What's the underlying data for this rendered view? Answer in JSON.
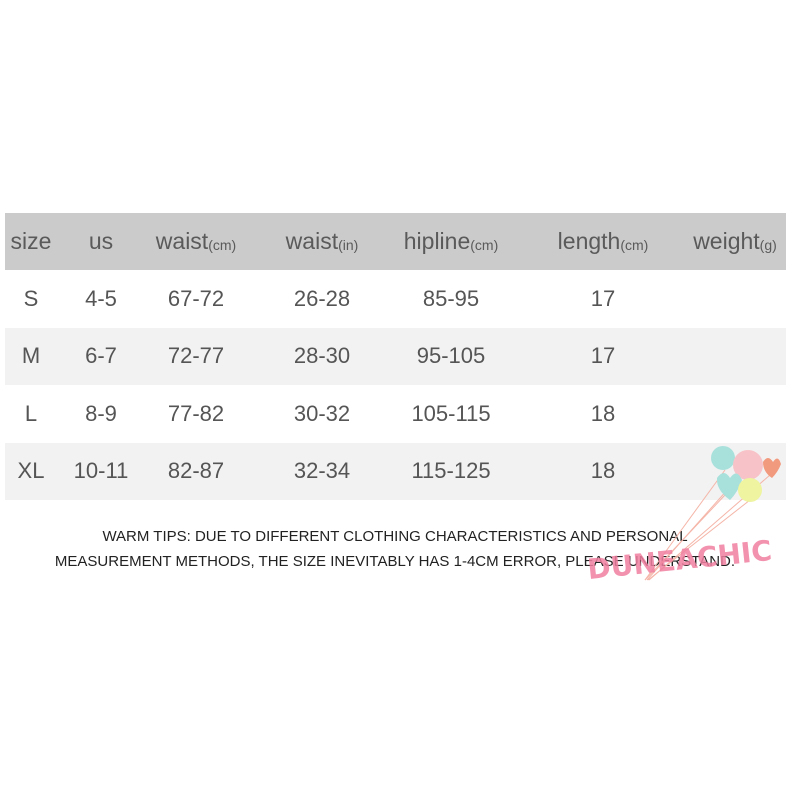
{
  "headers": [
    {
      "label": "size",
      "unit": ""
    },
    {
      "label": "us",
      "unit": ""
    },
    {
      "label": "waist",
      "unit": "(cm)"
    },
    {
      "label": "waist",
      "unit": "(in)"
    },
    {
      "label": "hipline",
      "unit": "(cm)"
    },
    {
      "label": "length",
      "unit": "(cm)"
    },
    {
      "label": "weight",
      "unit": "(g)"
    }
  ],
  "rows": [
    [
      "S",
      "4-5",
      "67-72",
      "26-28",
      "85-95",
      "17",
      ""
    ],
    [
      "M",
      "6-7",
      "72-77",
      "28-30",
      "95-105",
      "17",
      ""
    ],
    [
      "L",
      "8-9",
      "77-82",
      "30-32",
      "105-115",
      "18",
      ""
    ],
    [
      "XL",
      "10-11",
      "82-87",
      "32-34",
      "115-125",
      "18",
      ""
    ]
  ],
  "tips": {
    "line1": "WARM TIPS: DUE TO DIFFERENT CLOTHING CHARACTERISTICS AND PERSONAL",
    "line2": "MEASUREMENT METHODS, THE SIZE INEVITABLY HAS 1-4CM ERROR, PLEASE UNDERSTAND."
  },
  "watermark": {
    "text": "DUNEACHIC",
    "color": "#f07fa0"
  }
}
